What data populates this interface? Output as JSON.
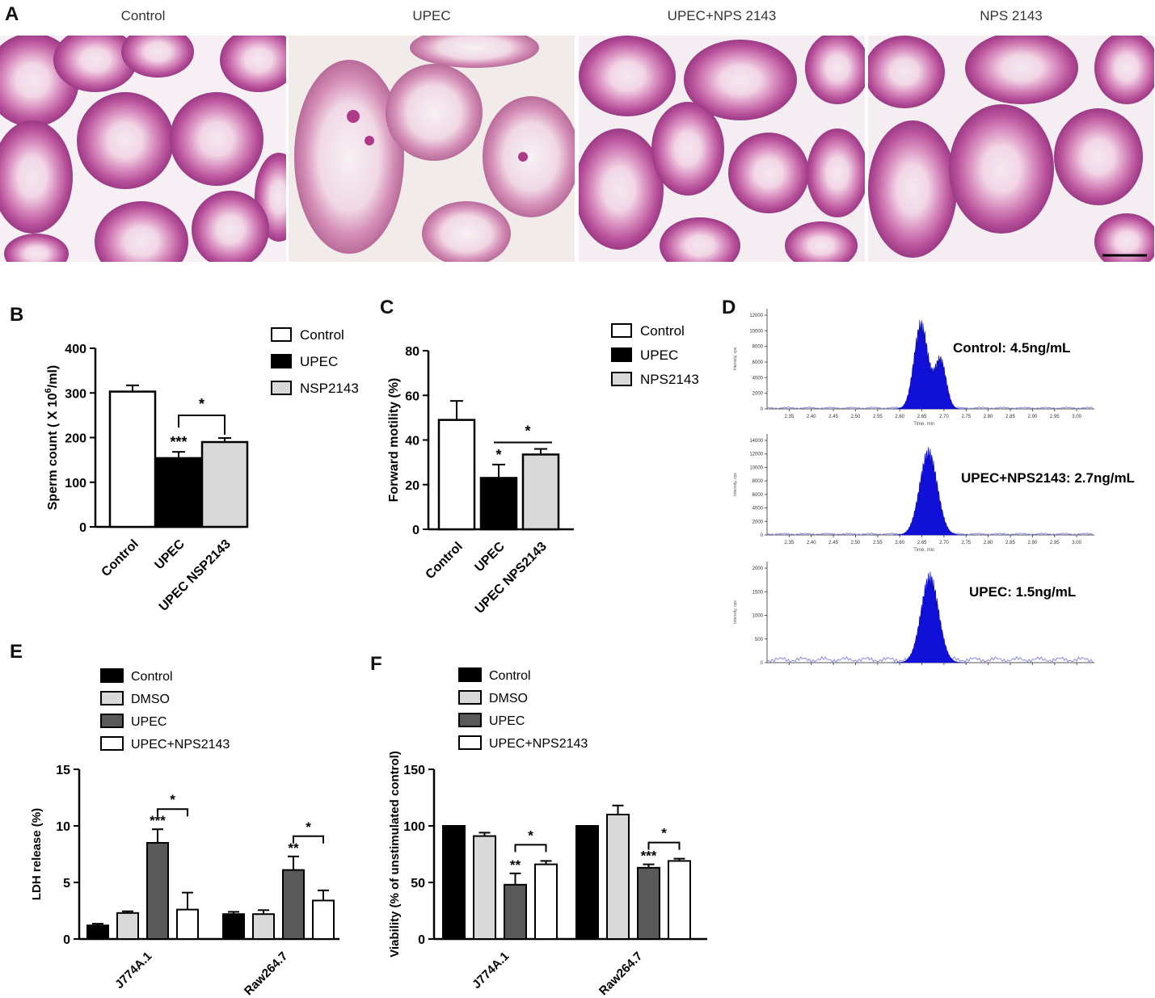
{
  "panels": {
    "A": {
      "letter": "A",
      "titles": [
        "Control",
        "UPEC",
        "UPEC+NPS 2143",
        "NPS 2143"
      ]
    },
    "B": {
      "letter": "B"
    },
    "C": {
      "letter": "C"
    },
    "D": {
      "letter": "D",
      "labels": [
        "Control:  4.5ng/mL",
        "UPEC+NPS2143: 2.7ng/mL",
        "UPEC: 1.5ng/mL"
      ],
      "x_ticks": [
        "2.35",
        "2.40",
        "2.45",
        "2.50",
        "2.55",
        "2.60",
        "2.65",
        "2.70",
        "2.75",
        "2.80",
        "2.85",
        "2.90",
        "2.95",
        "3.00"
      ],
      "y_ticks": [
        [
          "0",
          "2000",
          "4000",
          "6000",
          "8000",
          "10000",
          "12000"
        ],
        [
          "0",
          "2000",
          "4000",
          "6000",
          "8000",
          "10000",
          "12000",
          "14000"
        ],
        [
          "0",
          "500",
          "1000",
          "1500",
          "2000"
        ]
      ],
      "x_label": "Time, min",
      "y_label": "Intensity, cps"
    },
    "E": {
      "letter": "E"
    },
    "F": {
      "letter": "F"
    }
  },
  "chart_data": [
    {
      "id": "B",
      "type": "bar",
      "categories": [
        "Control",
        "UPEC",
        "UPEC NSP2143"
      ],
      "values": [
        303,
        154,
        190
      ],
      "errors": [
        14,
        14,
        9
      ],
      "fills": [
        "#ffffff",
        "#000000",
        "#d9d9d9"
      ],
      "ylabel": "Sperm count ( X 10",
      "ylabel_sup": "6",
      "ylabel_tail": "/ml)",
      "ylim": [
        0,
        400
      ],
      "yticks": [
        0,
        100,
        200,
        300,
        400
      ],
      "legend": [
        "Control",
        "UPEC",
        "NSP2143"
      ],
      "annotations": [
        {
          "text": "***",
          "bar": 1
        },
        {
          "text": "*",
          "bracket": [
            1,
            2
          ]
        }
      ]
    },
    {
      "id": "C",
      "type": "bar",
      "categories": [
        "Control",
        "UPEC",
        "UPEC NPS2143"
      ],
      "values": [
        49,
        23,
        33.5
      ],
      "errors": [
        8.5,
        6,
        2.5
      ],
      "fills": [
        "#ffffff",
        "#000000",
        "#d9d9d9"
      ],
      "ylabel": "Forward motility (%)",
      "ylim": [
        0,
        80
      ],
      "yticks": [
        0,
        20,
        40,
        60,
        80
      ],
      "legend": [
        "Control",
        "UPEC",
        "NPS2143"
      ],
      "annotations": [
        {
          "text": "*",
          "bar": 1
        },
        {
          "text": "*",
          "line": [
            1,
            2
          ]
        }
      ]
    },
    {
      "id": "E",
      "type": "bar",
      "categories": [
        "J774A.1",
        "Raw264.7"
      ],
      "series": [
        {
          "name": "Control",
          "values": [
            1.2,
            2.2
          ],
          "errors": [
            0.15,
            0.2
          ],
          "fill": "#000000"
        },
        {
          "name": "DMSO",
          "values": [
            2.3,
            2.2
          ],
          "errors": [
            0.15,
            0.35
          ],
          "fill": "#d9d9d9"
        },
        {
          "name": "UPEC",
          "values": [
            8.5,
            6.1
          ],
          "errors": [
            1.2,
            1.2
          ],
          "fill": "#595959"
        },
        {
          "name": "UPEC+NPS2143",
          "values": [
            2.6,
            3.4
          ],
          "errors": [
            1.5,
            0.9
          ],
          "fill": "#ffffff"
        }
      ],
      "ylabel": "LDH release (%)",
      "ylim": [
        0,
        15
      ],
      "yticks": [
        0,
        5,
        10,
        15
      ],
      "annotations": [
        {
          "text": "***",
          "group": 0,
          "series": 2
        },
        {
          "text": "*",
          "group": 0,
          "bracket": [
            2,
            3
          ]
        },
        {
          "text": "**",
          "group": 1,
          "series": 2
        },
        {
          "text": "*",
          "group": 1,
          "bracket": [
            2,
            3
          ]
        }
      ]
    },
    {
      "id": "F",
      "type": "bar",
      "categories": [
        "J774A.1",
        "Raw264.7"
      ],
      "series": [
        {
          "name": "Control",
          "values": [
            100,
            100
          ],
          "errors": [
            0,
            0
          ],
          "fill": "#000000"
        },
        {
          "name": "DMSO",
          "values": [
            91,
            110
          ],
          "errors": [
            3,
            8
          ],
          "fill": "#d9d9d9"
        },
        {
          "name": "UPEC",
          "values": [
            48,
            63
          ],
          "errors": [
            10,
            3
          ],
          "fill": "#595959"
        },
        {
          "name": "UPEC+NPS2143",
          "values": [
            66,
            69
          ],
          "errors": [
            3,
            2
          ],
          "fill": "#ffffff"
        }
      ],
      "ylabel": "Viability (% of unstimulated control)",
      "ylim": [
        0,
        150
      ],
      "yticks": [
        0,
        50,
        100,
        150
      ],
      "annotations": [
        {
          "text": "**",
          "group": 0,
          "series": 2
        },
        {
          "text": "*",
          "group": 0,
          "bracket": [
            2,
            3
          ]
        },
        {
          "text": "***",
          "group": 1,
          "series": 2
        },
        {
          "text": "*",
          "group": 1,
          "bracket": [
            2,
            3
          ]
        }
      ]
    }
  ]
}
